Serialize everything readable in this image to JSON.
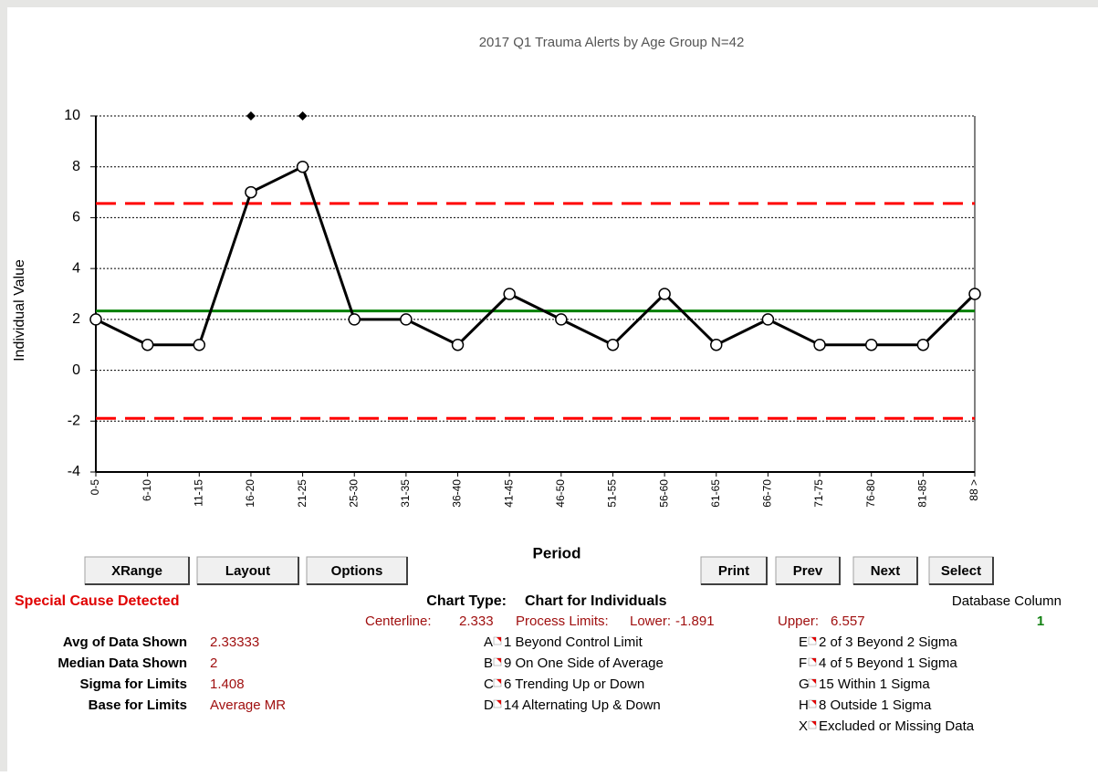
{
  "chart_data": {
    "type": "line",
    "title": "2017 Q1 Trauma  Alerts by Age Group N=42",
    "x_label": "Period",
    "y_label": "Individual Value",
    "categories": [
      "0-5",
      "6-10",
      "11-15",
      "16-20",
      "21-25",
      "25-30",
      "31-35",
      "36-40",
      "41-45",
      "46-50",
      "51-55",
      "56-60",
      "61-65",
      "66-70",
      "71-75",
      "76-80",
      "81-85",
      "88 >"
    ],
    "values": [
      2,
      1,
      1,
      7,
      8,
      2,
      2,
      1,
      3,
      2,
      1,
      3,
      1,
      2,
      1,
      1,
      1,
      3
    ],
    "color": "#000000",
    "ylim": [
      -4,
      10
    ],
    "yticks": [
      -4,
      -2,
      0,
      2,
      4,
      6,
      8,
      10
    ],
    "grid": true,
    "center_line": 2.333,
    "center_color": "#008000",
    "lower_limit": -1.891,
    "upper_limit": 6.557,
    "limit_color": "#ff0000"
  },
  "buttons_left": [
    "XRange",
    "Layout",
    "Options"
  ],
  "buttons_right": [
    "Print",
    "Prev",
    "Next",
    "Select"
  ],
  "status": {
    "special_cause": "Special Cause Detected",
    "chart_type_label": "Chart Type:",
    "chart_type": "Chart for Individuals",
    "database_column_label": "Database Column",
    "database_column": 1,
    "centerline_label": "Centerline:",
    "limits_label": "Process Limits:",
    "lower_label": "Lower:",
    "upper_label": "Upper:"
  },
  "stats": [
    {
      "label": "Avg of Data Shown",
      "value": 2.33333
    },
    {
      "label": "Median Data Shown",
      "value": 2
    },
    {
      "label": "Sigma for Limits",
      "value": 1.408
    },
    {
      "label": "Base for Limits",
      "value": "Average MR"
    }
  ],
  "rules": [
    {
      "key": "A",
      "text": "1 Beyond Control Limit"
    },
    {
      "key": "B",
      "text": "9 On One Side of Average"
    },
    {
      "key": "C",
      "text": "6 Trending Up or Down"
    },
    {
      "key": "D",
      "text": "14 Alternating  Up & Down"
    },
    {
      "key": "E",
      "text": "2 of 3 Beyond 2 Sigma"
    },
    {
      "key": "F",
      "text": "4 of 5 Beyond 1 Sigma"
    },
    {
      "key": "G",
      "text": "15 Within 1 Sigma"
    },
    {
      "key": "H",
      "text": "8 Outside 1 Sigma"
    },
    {
      "key": "X",
      "text": "Excluded or Missing Data"
    }
  ]
}
